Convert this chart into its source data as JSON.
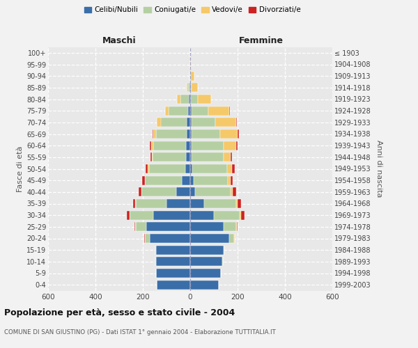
{
  "age_groups": [
    "0-4",
    "5-9",
    "10-14",
    "15-19",
    "20-24",
    "25-29",
    "30-34",
    "35-39",
    "40-44",
    "45-49",
    "50-54",
    "55-59",
    "60-64",
    "65-69",
    "70-74",
    "75-79",
    "80-84",
    "85-89",
    "90-94",
    "95-99",
    "100+"
  ],
  "birth_years": [
    "1999-2003",
    "1994-1998",
    "1989-1993",
    "1984-1988",
    "1979-1983",
    "1974-1978",
    "1969-1973",
    "1964-1968",
    "1959-1963",
    "1954-1958",
    "1949-1953",
    "1944-1948",
    "1939-1943",
    "1934-1938",
    "1929-1933",
    "1924-1928",
    "1919-1923",
    "1914-1918",
    "1909-1913",
    "1904-1908",
    "≤ 1903"
  ],
  "maschi": {
    "celibi": [
      140,
      145,
      145,
      145,
      170,
      185,
      155,
      100,
      60,
      35,
      20,
      18,
      17,
      15,
      15,
      10,
      5,
      2,
      0,
      0,
      0
    ],
    "coniugati": [
      0,
      0,
      2,
      3,
      20,
      45,
      100,
      130,
      145,
      155,
      155,
      140,
      140,
      130,
      110,
      80,
      35,
      8,
      2,
      0,
      0
    ],
    "vedovi": [
      0,
      0,
      0,
      0,
      2,
      2,
      2,
      2,
      2,
      2,
      3,
      5,
      8,
      10,
      15,
      15,
      15,
      5,
      2,
      0,
      0
    ],
    "divorziati": [
      0,
      0,
      0,
      0,
      2,
      2,
      10,
      10,
      10,
      12,
      10,
      5,
      5,
      5,
      2,
      2,
      0,
      0,
      0,
      0,
      0
    ]
  },
  "femmine": {
    "nubili": [
      120,
      130,
      135,
      140,
      165,
      140,
      100,
      60,
      20,
      15,
      10,
      5,
      5,
      5,
      5,
      5,
      2,
      2,
      0,
      0,
      0
    ],
    "coniugate": [
      0,
      0,
      2,
      3,
      20,
      55,
      110,
      135,
      150,
      145,
      145,
      135,
      135,
      120,
      100,
      70,
      30,
      5,
      2,
      0,
      0
    ],
    "vedove": [
      0,
      0,
      0,
      0,
      2,
      2,
      5,
      5,
      8,
      10,
      20,
      30,
      55,
      75,
      90,
      90,
      55,
      25,
      15,
      2,
      0
    ],
    "divorziate": [
      0,
      0,
      0,
      0,
      2,
      2,
      15,
      15,
      15,
      10,
      12,
      5,
      5,
      5,
      2,
      2,
      2,
      0,
      0,
      0,
      0
    ]
  },
  "colors": {
    "celibi": "#3a6ea8",
    "coniugati": "#b5cfa3",
    "vedovi": "#f5c869",
    "divorziati": "#cc2222"
  },
  "legend_labels": [
    "Celibi/Nubili",
    "Coniugati/e",
    "Vedovi/e",
    "Divorziati/e"
  ],
  "xlim": 600,
  "title": "Popolazione per età, sesso e stato civile - 2004",
  "subtitle": "COMUNE DI SAN GIUSTINO (PG) - Dati ISTAT 1° gennaio 2004 - Elaborazione TUTTITALIA.IT",
  "ylabel_left": "Fasce di età",
  "ylabel_right": "Anni di nascita",
  "xlabel_maschi": "Maschi",
  "xlabel_femmine": "Femmine",
  "bg_color": "#f2f2f2",
  "plot_bg": "#e8e8e8"
}
